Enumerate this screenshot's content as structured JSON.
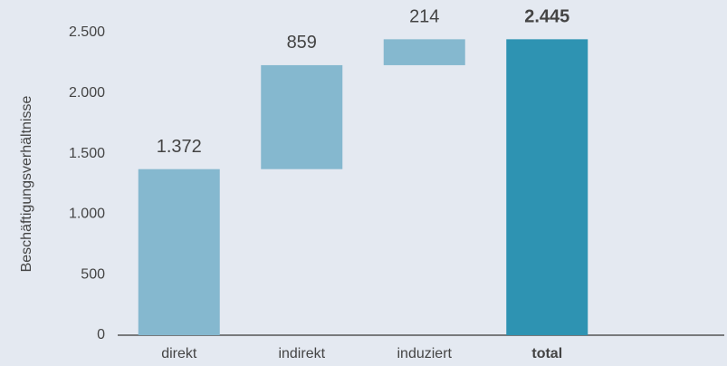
{
  "chart_data": {
    "type": "waterfall",
    "ylabel": "Beschäftigungsverhältnisse",
    "categories": [
      "direkt",
      "indirekt",
      "induziert",
      "total"
    ],
    "values": [
      1372,
      859,
      214,
      2445
    ],
    "value_labels": [
      "1.372",
      "859",
      "214",
      "2.445"
    ],
    "colors": [
      "#85b8cf",
      "#85b8cf",
      "#85b8cf",
      "#2e93b2"
    ],
    "ylim": [
      0,
      2500
    ],
    "yticks": [
      0,
      500,
      {
        "value": 1000,
        "label": "1.000"
      },
      {
        "value": 1500,
        "label": "1.500"
      },
      {
        "value": 2000,
        "label": "2.000"
      },
      {
        "value": 2500,
        "label": "2.500"
      }
    ],
    "grid": false
  }
}
